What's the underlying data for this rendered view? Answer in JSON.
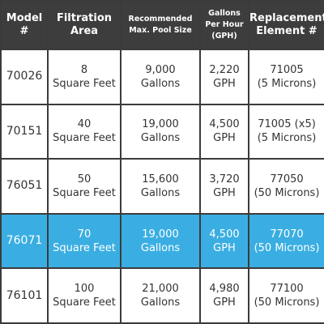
{
  "table": {
    "header": [
      [
        "Model",
        "#"
      ],
      [
        "Filtration",
        "Area"
      ],
      [
        "Recommended",
        "Max. Pool Size"
      ],
      [
        "Gallons",
        "Per Hour",
        "(GPH)"
      ],
      [
        "Replacement",
        "Element #"
      ]
    ],
    "rows": [
      [
        [
          "70026"
        ],
        [
          "8",
          "Square Feet"
        ],
        [
          "9,000",
          "Gallons"
        ],
        [
          "2,220",
          "GPH"
        ],
        [
          "71005",
          "(5 Microns)"
        ]
      ],
      [
        [
          "70151"
        ],
        [
          "40",
          "Square Feet"
        ],
        [
          "19,000",
          "Gallons"
        ],
        [
          "4,500",
          "GPH"
        ],
        [
          "71005 (x5)",
          "(5 Microns)"
        ]
      ],
      [
        [
          "76051"
        ],
        [
          "50",
          "Square Feet"
        ],
        [
          "15,600",
          "Gallons"
        ],
        [
          "3,720",
          "GPH"
        ],
        [
          "77050",
          "(50 Microns)"
        ]
      ],
      [
        [
          "76071"
        ],
        [
          "70",
          "Square Feet"
        ],
        [
          "19,000",
          "Gallons"
        ],
        [
          "4,500",
          "GPH"
        ],
        [
          "77070",
          "(50 Microns)"
        ]
      ],
      [
        [
          "76101"
        ],
        [
          "100",
          "Square Feet"
        ],
        [
          "21,000",
          "Gallons"
        ],
        [
          "4,980",
          "GPH"
        ],
        [
          "77100",
          "(50 Microns)"
        ]
      ]
    ]
  }
}
